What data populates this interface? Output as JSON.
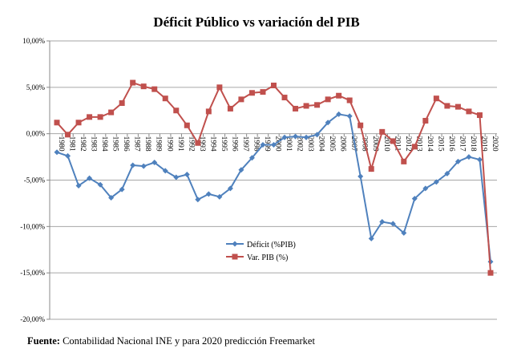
{
  "chart_data": {
    "type": "line",
    "title": "Déficit Público vs variación del PIB",
    "xlabel": "",
    "ylabel": "",
    "ylim": [
      -20,
      10
    ],
    "yticks": [
      10,
      5,
      0,
      -5,
      -10,
      -15,
      -20
    ],
    "ytick_labels": [
      "10,00%",
      "5,00%",
      "0,00%",
      "-5,00%",
      "-10,00%",
      "-15,00%",
      "-20,00%"
    ],
    "grid": true,
    "legend_position": "center-bottom",
    "x": [
      "1980",
      "1981",
      "1982",
      "1983",
      "1984",
      "1985",
      "1986",
      "1987",
      "1988",
      "1989",
      "1990",
      "1991",
      "1992",
      "1993",
      "1994",
      "1995",
      "1996",
      "1997",
      "1998",
      "1999",
      "2000",
      "2001",
      "2002",
      "2003",
      "2004",
      "2005",
      "2006",
      "2007",
      "2008",
      "2009",
      "2010",
      "2011",
      "2012",
      "2013",
      "2014",
      "2015",
      "2016",
      "2017",
      "2018",
      "2019",
      "2020"
    ],
    "series": [
      {
        "name": "Déficit (%PIB)",
        "color": "#4F81BD",
        "marker": "diamond",
        "values": [
          -2.0,
          -2.4,
          -5.6,
          -4.8,
          -5.5,
          -6.9,
          -6.0,
          -3.4,
          -3.5,
          -3.1,
          -4.0,
          -4.7,
          -4.4,
          -7.1,
          -6.5,
          -6.8,
          -5.9,
          -3.9,
          -2.6,
          -1.2,
          -1.2,
          -0.4,
          -0.3,
          -0.4,
          -0.1,
          1.2,
          2.1,
          1.9,
          -4.6,
          -11.3,
          -9.5,
          -9.7,
          -10.7,
          -7.0,
          -5.9,
          -5.2,
          -4.3,
          -3.0,
          -2.5,
          -2.8,
          -13.8
        ]
      },
      {
        "name": "Var. PIB (%)",
        "color": "#C0504D",
        "marker": "square",
        "values": [
          1.2,
          -0.1,
          1.2,
          1.8,
          1.8,
          2.3,
          3.3,
          5.5,
          5.1,
          4.8,
          3.8,
          2.5,
          0.9,
          -1.0,
          2.4,
          5.0,
          2.7,
          3.7,
          4.4,
          4.5,
          5.2,
          3.9,
          2.7,
          3.0,
          3.1,
          3.7,
          4.1,
          3.6,
          0.9,
          -3.8,
          0.2,
          -0.8,
          -3.0,
          -1.4,
          1.4,
          3.8,
          3.0,
          2.9,
          2.4,
          2.0,
          -15.0
        ]
      }
    ]
  },
  "source": {
    "label": "Fuente:",
    "text": " Contabilidad Nacional INE y para 2020 predicción Freemarket"
  }
}
